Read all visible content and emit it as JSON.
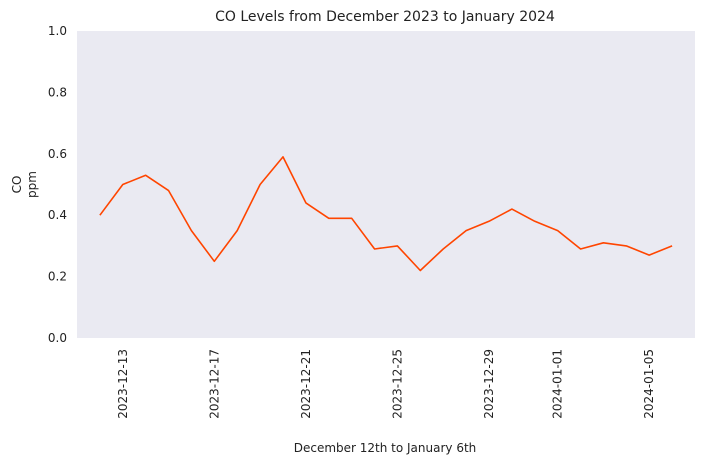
{
  "chart_data": {
    "type": "line",
    "title": "CO Levels from December 2023 to January 2024",
    "xlabel": "December 12th to January 6th",
    "ylabel": [
      "CO",
      "ppm"
    ],
    "ylim": [
      0,
      1
    ],
    "yticks": [
      0,
      0.2,
      0.4,
      0.6,
      0.8,
      1
    ],
    "ytick_labels": [
      "0.0",
      "0.2",
      "0.4",
      "0.6",
      "0.8",
      "1.0"
    ],
    "xlim": [
      "2023-12-11",
      "2024-01-07"
    ],
    "xticks": [
      "2023-12-13",
      "2023-12-17",
      "2023-12-21",
      "2023-12-25",
      "2023-12-29",
      "2024-01-01",
      "2024-01-05"
    ],
    "grid": false,
    "legend": false,
    "background": "#eaeaf2",
    "line_color": "#ff4500",
    "series": [
      {
        "x": [
          "2023-12-12",
          "2023-12-13",
          "2023-12-14",
          "2023-12-15",
          "2023-12-16",
          "2023-12-17",
          "2023-12-18",
          "2023-12-19",
          "2023-12-20",
          "2023-12-21",
          "2023-12-22",
          "2023-12-23",
          "2023-12-24",
          "2023-12-25",
          "2023-12-26",
          "2023-12-27",
          "2023-12-28",
          "2023-12-29",
          "2023-12-30",
          "2023-12-31",
          "2024-01-01",
          "2024-01-02",
          "2024-01-03",
          "2024-01-04",
          "2024-01-05",
          "2024-01-06"
        ],
        "values": [
          0.4,
          0.5,
          0.53,
          0.48,
          0.35,
          0.25,
          0.35,
          0.5,
          0.59,
          0.44,
          0.39,
          0.39,
          0.29,
          0.3,
          0.22,
          0.29,
          0.35,
          0.38,
          0.42,
          0.38,
          0.35,
          0.29,
          0.31,
          0.3,
          0.27,
          0.3
        ]
      }
    ]
  }
}
